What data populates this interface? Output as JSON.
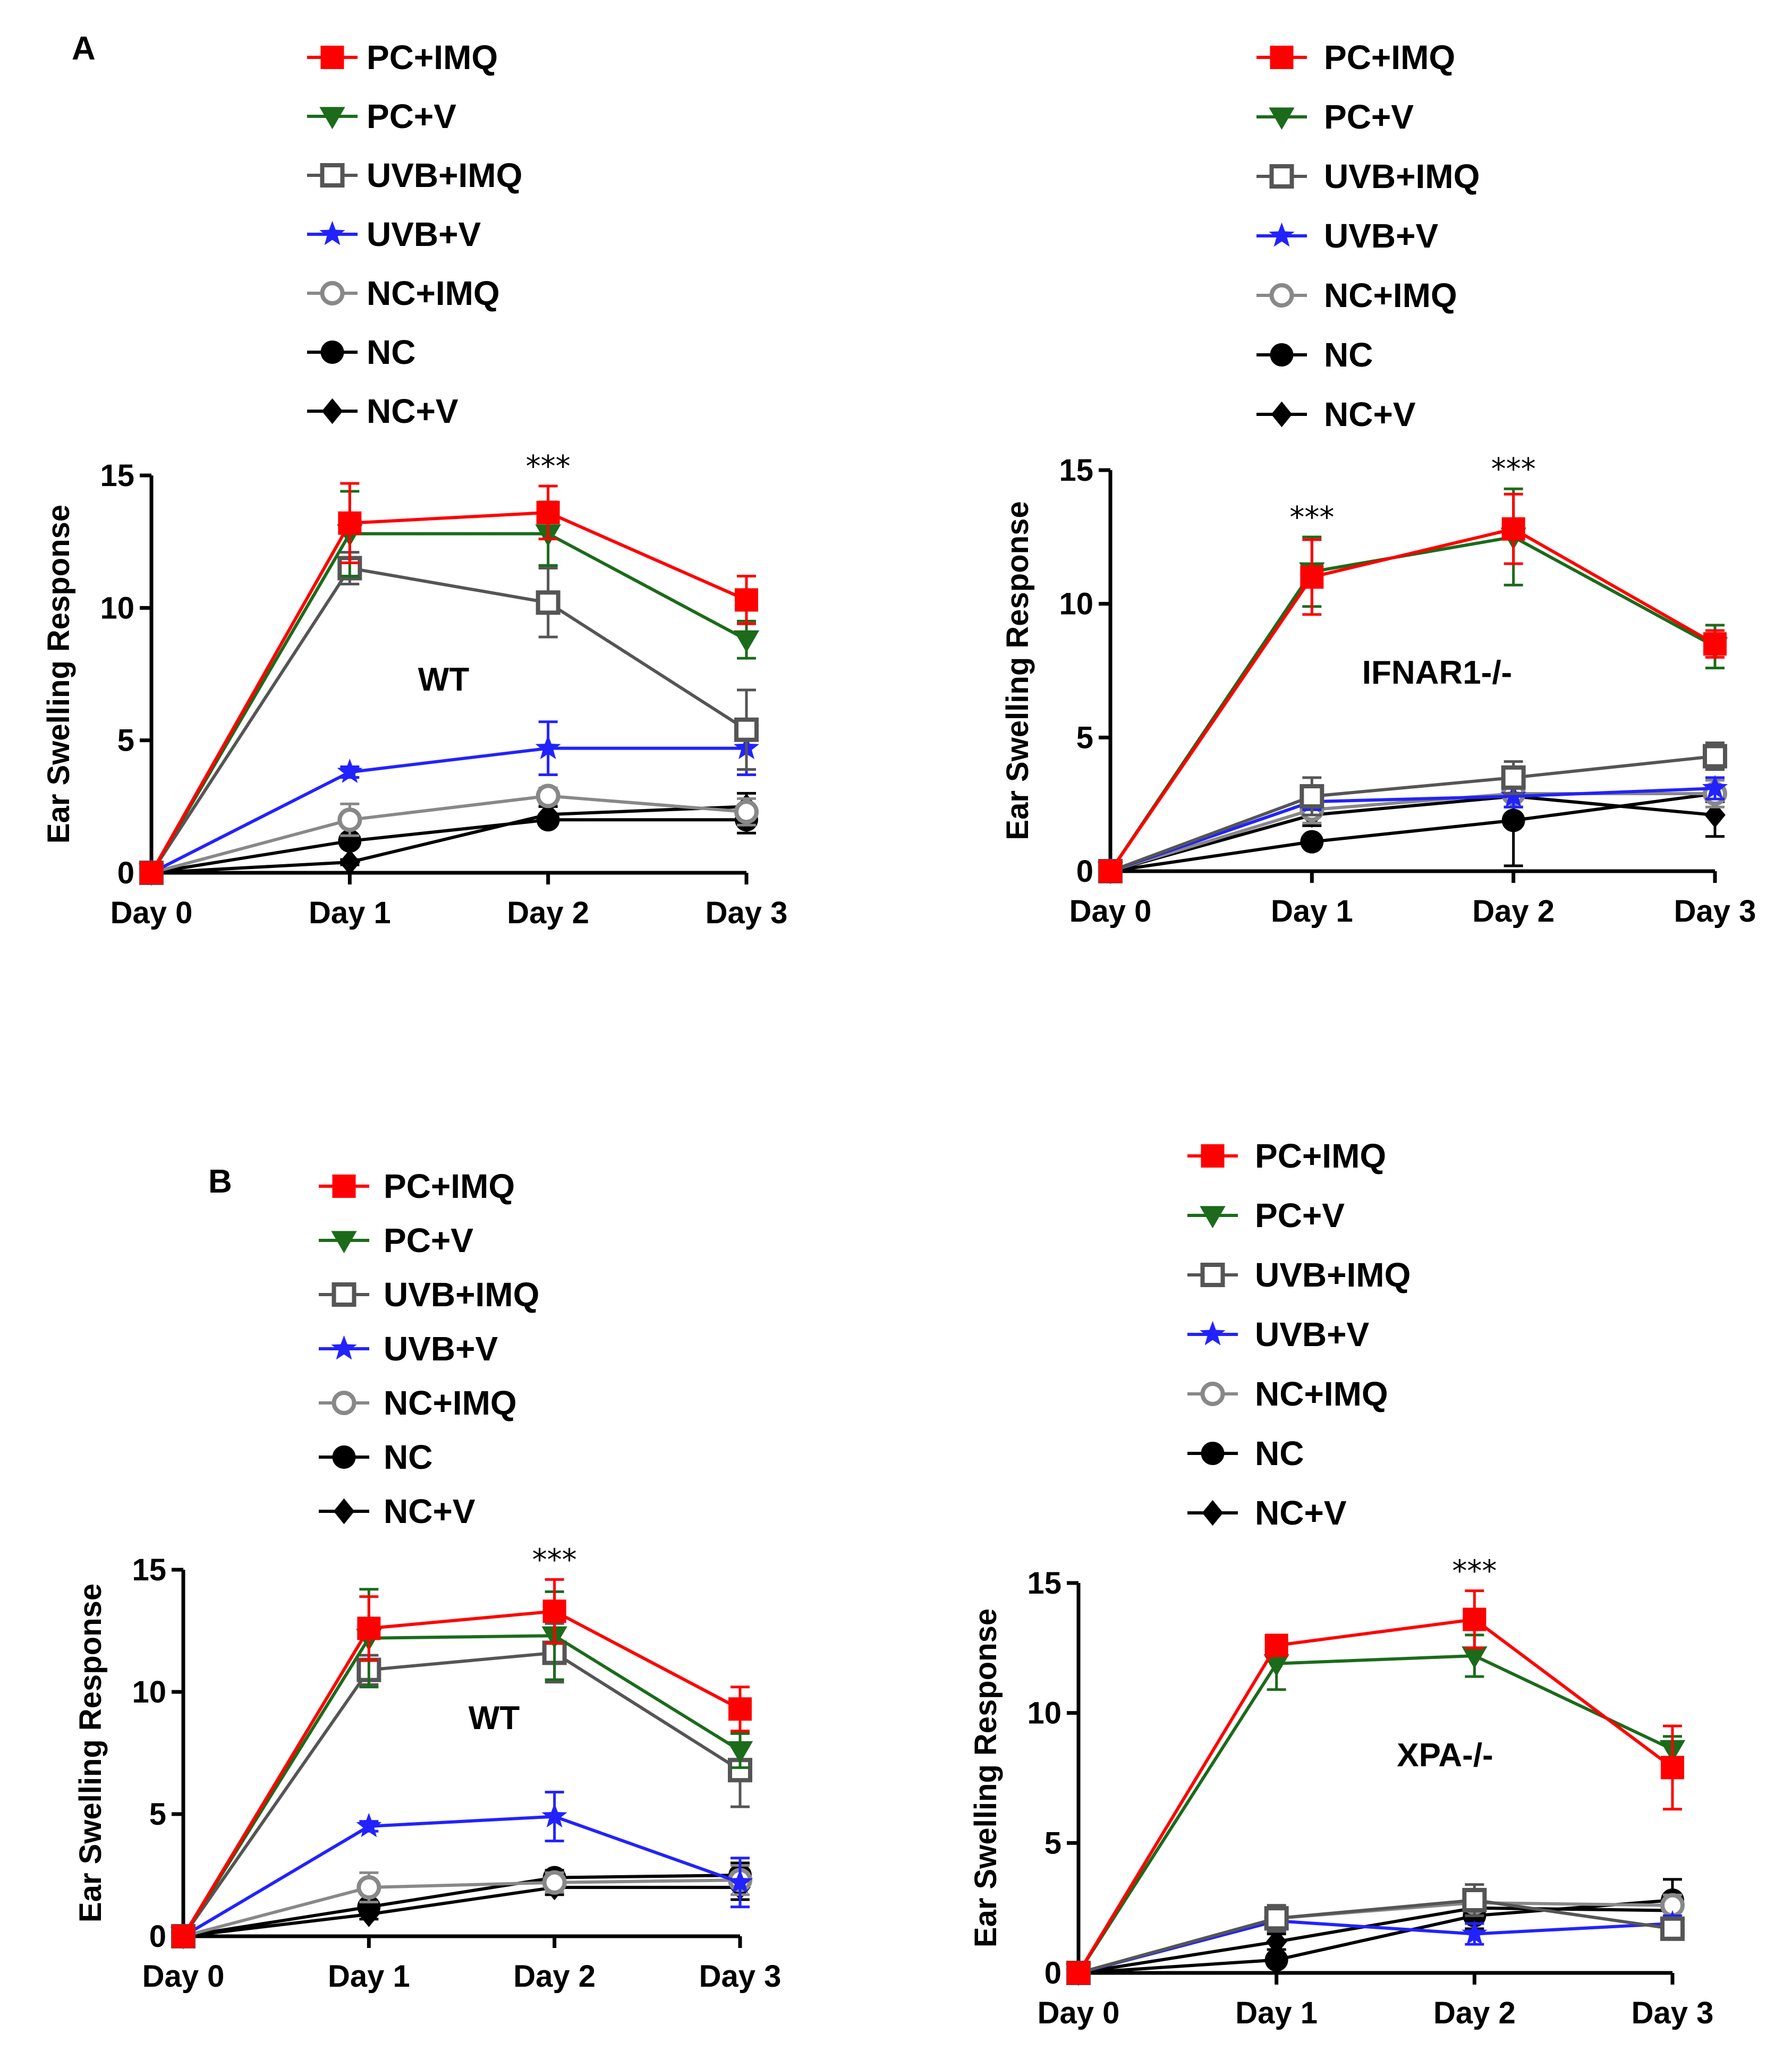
{
  "figure": {
    "panel_labels": [
      "A",
      "B"
    ]
  },
  "series_styles": [
    {
      "name": "PC+IMQ",
      "color": "#ff0000",
      "marker": "square-filled"
    },
    {
      "name": "PC+V",
      "color": "#1b6b1b",
      "marker": "triangle-down-filled"
    },
    {
      "name": "UVB+IMQ",
      "color": "#555555",
      "marker": "square-open"
    },
    {
      "name": "UVB+V",
      "color": "#2222ff",
      "marker": "star-filled"
    },
    {
      "name": "NC+IMQ",
      "color": "#888888",
      "marker": "circle-open"
    },
    {
      "name": "NC",
      "color": "#000000",
      "marker": "circle-filled"
    },
    {
      "name": "NC+V",
      "color": "#000000",
      "marker": "diamond-filled"
    }
  ],
  "chart_data": [
    {
      "id": "A-WT",
      "type": "line",
      "title": "",
      "annotation": "WT",
      "xlabel": "",
      "ylabel": "Ear Swelling Response",
      "categories": [
        "Day 0",
        "Day 1",
        "Day 2",
        "Day 3"
      ],
      "ylim": [
        0,
        15
      ],
      "yticks": [
        0,
        5,
        10,
        15
      ],
      "significance": [
        {
          "category": "Day 2",
          "label": "***"
        }
      ],
      "legend": [
        "PC+IMQ",
        "PC+V",
        "UVB+IMQ",
        "UVB+V",
        "NC+IMQ",
        "NC",
        "NC+V"
      ],
      "series": [
        {
          "name": "PC+IMQ",
          "values": [
            0,
            13.2,
            13.6,
            10.3
          ],
          "errors": [
            0,
            1.5,
            1.0,
            0.9
          ]
        },
        {
          "name": "PC+V",
          "values": [
            0,
            12.8,
            12.8,
            8.8
          ],
          "errors": [
            0,
            1.6,
            1.2,
            0.7
          ]
        },
        {
          "name": "UVB+IMQ",
          "values": [
            0,
            11.5,
            10.2,
            5.4
          ],
          "errors": [
            0,
            0.6,
            1.3,
            1.5
          ]
        },
        {
          "name": "UVB+V",
          "values": [
            0,
            3.8,
            4.7,
            4.7
          ],
          "errors": [
            0,
            0.2,
            1.0,
            1.0
          ]
        },
        {
          "name": "NC+IMQ",
          "values": [
            0,
            2.0,
            2.9,
            2.3
          ],
          "errors": [
            0,
            0.6,
            0.3,
            0.5
          ]
        },
        {
          "name": "NC",
          "values": [
            0,
            1.2,
            2.0,
            2.0
          ],
          "errors": [
            0,
            0.2,
            0.2,
            0.5
          ]
        },
        {
          "name": "NC+V",
          "values": [
            0,
            0.4,
            2.2,
            2.5
          ],
          "errors": [
            0,
            0.1,
            0.3,
            0.5
          ]
        }
      ]
    },
    {
      "id": "A-IFNAR1",
      "type": "line",
      "title": "",
      "annotation": "IFNAR1-/-",
      "xlabel": "",
      "ylabel": "Ear Swelling Response",
      "categories": [
        "Day 0",
        "Day 1",
        "Day 2",
        "Day 3"
      ],
      "ylim": [
        0,
        15
      ],
      "yticks": [
        0,
        5,
        10,
        15
      ],
      "significance": [
        {
          "category": "Day 1",
          "label": "***"
        },
        {
          "category": "Day 2",
          "label": "***"
        }
      ],
      "legend": [
        "PC+IMQ",
        "PC+V",
        "UVB+IMQ",
        "UVB+V",
        "NC+IMQ",
        "NC",
        "NC+V"
      ],
      "series": [
        {
          "name": "PC+IMQ",
          "values": [
            0,
            11.0,
            12.8,
            8.5
          ],
          "errors": [
            0,
            1.4,
            1.3,
            0.5
          ]
        },
        {
          "name": "PC+V",
          "values": [
            0,
            11.2,
            12.5,
            8.4
          ],
          "errors": [
            0,
            1.3,
            1.8,
            0.8
          ]
        },
        {
          "name": "UVB+IMQ",
          "values": [
            0,
            2.8,
            3.5,
            4.3
          ],
          "errors": [
            0,
            0.7,
            0.6,
            0.5
          ]
        },
        {
          "name": "UVB+V",
          "values": [
            0,
            2.6,
            2.8,
            3.1
          ],
          "errors": [
            0,
            0.3,
            0.4,
            0.4
          ]
        },
        {
          "name": "NC+IMQ",
          "values": [
            0,
            2.3,
            2.9,
            2.9
          ],
          "errors": [
            0,
            0.5,
            0.5,
            0.5
          ]
        },
        {
          "name": "NC",
          "values": [
            0,
            1.1,
            1.9,
            2.9
          ],
          "errors": [
            0,
            0.2,
            1.7,
            0.3
          ]
        },
        {
          "name": "NC+V",
          "values": [
            0,
            2.1,
            2.8,
            2.1
          ],
          "errors": [
            0,
            0.4,
            0.4,
            0.8
          ]
        }
      ]
    },
    {
      "id": "B-WT",
      "type": "line",
      "title": "",
      "annotation": "WT",
      "xlabel": "",
      "ylabel": "Ear Swelling Response",
      "categories": [
        "Day 0",
        "Day 1",
        "Day 2",
        "Day 3"
      ],
      "ylim": [
        0,
        15
      ],
      "yticks": [
        0,
        5,
        10,
        15
      ],
      "significance": [
        {
          "category": "Day 2",
          "label": "***"
        }
      ],
      "legend": [
        "PC+IMQ",
        "PC+V",
        "UVB+IMQ",
        "UVB+V",
        "NC+IMQ",
        "NC",
        "NC+V"
      ],
      "series": [
        {
          "name": "PC+IMQ",
          "values": [
            0,
            12.6,
            13.3,
            9.3
          ],
          "errors": [
            0,
            1.3,
            1.3,
            0.9
          ]
        },
        {
          "name": "PC+V",
          "values": [
            0,
            12.2,
            12.3,
            7.6
          ],
          "errors": [
            0,
            2.0,
            1.8,
            0.7
          ]
        },
        {
          "name": "UVB+IMQ",
          "values": [
            0,
            10.9,
            11.6,
            6.8
          ],
          "errors": [
            0,
            0.6,
            1.2,
            1.5
          ]
        },
        {
          "name": "UVB+V",
          "values": [
            0,
            4.5,
            4.9,
            2.2
          ],
          "errors": [
            0,
            0.2,
            1.0,
            1.0
          ]
        },
        {
          "name": "NC+IMQ",
          "values": [
            0,
            2.0,
            2.2,
            2.3
          ],
          "errors": [
            0,
            0.6,
            0.4,
            0.6
          ]
        },
        {
          "name": "NC",
          "values": [
            0,
            1.2,
            2.4,
            2.5
          ],
          "errors": [
            0,
            0.2,
            0.3,
            0.5
          ]
        },
        {
          "name": "NC+V",
          "values": [
            0,
            0.9,
            2.0,
            2.0
          ],
          "errors": [
            0,
            0.2,
            0.3,
            0.5
          ]
        }
      ]
    },
    {
      "id": "B-XPA",
      "type": "line",
      "title": "",
      "annotation": "XPA-/-",
      "xlabel": "",
      "ylabel": "Ear Swelling Response",
      "categories": [
        "Day 0",
        "Day 1",
        "Day 2",
        "Day 3"
      ],
      "ylim": [
        0,
        15
      ],
      "yticks": [
        0,
        5,
        10,
        15
      ],
      "significance": [
        {
          "category": "Day 2",
          "label": "***"
        }
      ],
      "legend": [
        "PC+IMQ",
        "PC+V",
        "UVB+IMQ",
        "UVB+V",
        "NC+IMQ",
        "NC",
        "NC+V"
      ],
      "series": [
        {
          "name": "PC+IMQ",
          "values": [
            0,
            12.6,
            13.6,
            7.9
          ],
          "errors": [
            0,
            0.3,
            1.1,
            1.6
          ]
        },
        {
          "name": "PC+V",
          "values": [
            0,
            11.9,
            12.2,
            8.6
          ],
          "errors": [
            0,
            1.0,
            0.8,
            0.5
          ]
        },
        {
          "name": "UVB+IMQ",
          "values": [
            0,
            2.1,
            2.8,
            1.7
          ],
          "errors": [
            0,
            0.5,
            0.6,
            0.3
          ]
        },
        {
          "name": "UVB+V",
          "values": [
            0,
            2.0,
            1.5,
            1.9
          ],
          "errors": [
            0,
            0.4,
            0.4,
            0.3
          ]
        },
        {
          "name": "NC+IMQ",
          "values": [
            0,
            2.1,
            2.7,
            2.6
          ],
          "errors": [
            0,
            0.4,
            0.5,
            0.4
          ]
        },
        {
          "name": "NC",
          "values": [
            0,
            0.5,
            2.2,
            2.8
          ],
          "errors": [
            0,
            0.2,
            0.5,
            0.8
          ]
        },
        {
          "name": "NC+V",
          "values": [
            0,
            1.2,
            2.5,
            2.4
          ],
          "errors": [
            0,
            0.3,
            0.4,
            0.4
          ]
        }
      ]
    }
  ]
}
